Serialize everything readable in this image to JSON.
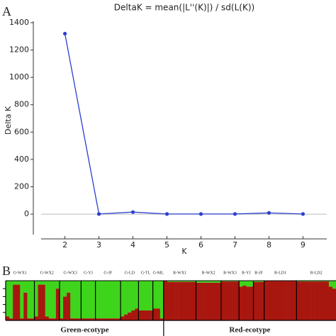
{
  "chart_data": [
    {
      "type": "line",
      "panel": "A",
      "title": "DeltaK = mean(|L''(K)|) / sd(L(K))",
      "x_label": "K",
      "y_label": "Delta K",
      "x": [
        2,
        3,
        4,
        5,
        6,
        7,
        8,
        9
      ],
      "series": [
        {
          "name": "Delta K",
          "color": "#2b3fcf",
          "values": [
            1320,
            1,
            15,
            1,
            1,
            1,
            9,
            1
          ]
        }
      ],
      "xlim": [
        1.3,
        9.7
      ],
      "xticks": [
        2,
        3,
        4,
        5,
        6,
        7,
        8,
        9
      ],
      "ylim": [
        -150,
        1400
      ],
      "yticks": [
        0,
        200,
        400,
        600,
        800,
        1000,
        1200,
        1400
      ],
      "zero_line": true
    },
    {
      "type": "structure",
      "panel": "B",
      "colors": [
        "#a8170f",
        "#3fd41c"
      ],
      "ylim": [
        0,
        100
      ],
      "ecotypes": [
        {
          "label": "Green-ecotype",
          "groups": [
            {
              "label": "G-WX1",
              "values": [
                10,
                5,
                90,
                90,
                5,
                70,
                5,
                5
              ]
            },
            {
              "label": "G-WX2",
              "values": [
                10,
                90,
                90,
                10,
                5,
                5,
                80
              ]
            },
            {
              "label": "G-WX3",
              "values": [
                5,
                60,
                70,
                5,
                5,
                5
              ]
            },
            {
              "label": "G-YJ",
              "values": [
                5,
                5,
                5,
                5
              ]
            },
            {
              "label": "G-JF",
              "values": [
                5,
                5,
                5,
                5,
                5,
                5,
                5
              ]
            },
            {
              "label": "G-LD",
              "values": [
                10,
                15,
                20,
                25,
                30
              ]
            },
            {
              "label": "G-TL",
              "values": [
                25,
                25,
                25,
                25
              ]
            },
            {
              "label": "G-ML",
              "values": [
                30,
                30,
                5
              ]
            }
          ]
        },
        {
          "label": "Red-ecotype",
          "groups": [
            {
              "label": "R-WX1",
              "values": [
                100,
                97,
                97,
                97,
                97,
                97,
                97,
                97,
                97
              ]
            },
            {
              "label": "R-WX2",
              "values": [
                95,
                95,
                95,
                95,
                95,
                95,
                95
              ]
            },
            {
              "label": "R-WX3",
              "values": [
                98,
                98,
                98,
                98,
                98
              ]
            },
            {
              "label": "R-YJ",
              "values": [
                85,
                88,
                85,
                85
              ]
            },
            {
              "label": "R-JF",
              "values": [
                97,
                97,
                97
              ]
            },
            {
              "label": "R-LD1",
              "values": [
                99,
                99,
                99,
                99,
                99,
                99,
                99,
                99,
                99
              ]
            },
            {
              "label": "R-LD2",
              "values": [
                98,
                98,
                98,
                98,
                98,
                98,
                98,
                98,
                98,
                85,
                80
              ]
            }
          ]
        }
      ]
    }
  ]
}
